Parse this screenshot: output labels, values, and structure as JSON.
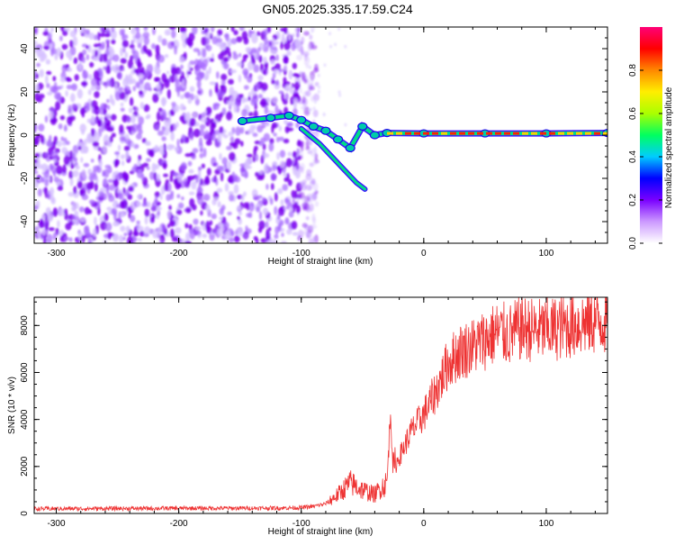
{
  "title": "GN05.2025.335.17.59.C24",
  "chart_data": [
    {
      "type": "heatmap",
      "title": "GN05.2025.335.17.59.C24",
      "xlabel": "Height of straight line (km)",
      "ylabel": "Frequency (Hz)",
      "xlim": [
        -318,
        150
      ],
      "ylim": [
        -50,
        50
      ],
      "xticks": [
        -300,
        -200,
        -100,
        0,
        100
      ],
      "yticks": [
        -40,
        -20,
        0,
        20,
        40
      ],
      "xtick_labels": [
        "-300",
        "-200",
        "-100",
        "0",
        "100"
      ],
      "ytick_labels": [
        "-40",
        "-20",
        "0",
        "20",
        "40"
      ],
      "noise_region_x": [
        -318,
        -93
      ],
      "signal_track": [
        {
          "x": -148,
          "y": 6.5
        },
        {
          "x": -125,
          "y": 8
        },
        {
          "x": -110,
          "y": 9
        },
        {
          "x": -100,
          "y": 7
        },
        {
          "x": -90,
          "y": 4
        },
        {
          "x": -80,
          "y": 2
        },
        {
          "x": -70,
          "y": -2
        },
        {
          "x": -60,
          "y": -6
        },
        {
          "x": -50,
          "y": 4
        },
        {
          "x": -40,
          "y": 0
        },
        {
          "x": -30,
          "y": 1
        },
        {
          "x": 0,
          "y": 0.8
        },
        {
          "x": 50,
          "y": 0.8
        },
        {
          "x": 100,
          "y": 0.8
        },
        {
          "x": 150,
          "y": 1
        }
      ],
      "branch_track": [
        {
          "x": -100,
          "y": 3
        },
        {
          "x": -85,
          "y": -4
        },
        {
          "x": -75,
          "y": -10
        },
        {
          "x": -65,
          "y": -16
        },
        {
          "x": -55,
          "y": -22
        },
        {
          "x": -48,
          "y": -25
        }
      ],
      "colorbar": {
        "label": "Normalized spectral amplitude",
        "range": [
          0,
          1
        ],
        "ticks": [
          0.0,
          0.2,
          0.4,
          0.6,
          0.8
        ],
        "tick_labels": [
          "0.0",
          "0.2",
          "0.4",
          "0.6",
          "0.8"
        ],
        "colors": [
          "#ffffff",
          "#cc99ff",
          "#7a00ff",
          "#0000ff",
          "#00ccff",
          "#00ff60",
          "#aaff00",
          "#ffee00",
          "#ff8800",
          "#ff0000",
          "#ff0077"
        ]
      }
    },
    {
      "type": "line",
      "xlabel": "Height of straight line (km)",
      "ylabel": "SNR (10 * v/v)",
      "xlim": [
        -318,
        150
      ],
      "ylim": [
        0,
        9200
      ],
      "xticks": [
        -300,
        -200,
        -100,
        0,
        100
      ],
      "yticks": [
        0,
        2000,
        4000,
        6000,
        8000
      ],
      "xtick_labels": [
        "-300",
        "-200",
        "-100",
        "0",
        "100"
      ],
      "ytick_labels": [
        "0",
        "2000",
        "4000",
        "6000",
        "8000"
      ],
      "color": "#ee3333",
      "x": [
        -318,
        -200,
        -120,
        -100,
        -90,
        -80,
        -70,
        -60,
        -50,
        -45,
        -40,
        -35,
        -30,
        -27,
        -25,
        -20,
        -10,
        0,
        10,
        20,
        30,
        40,
        50,
        60,
        70,
        80,
        90,
        100,
        110,
        120,
        130,
        140,
        150
      ],
      "values": [
        200,
        220,
        230,
        250,
        300,
        420,
        800,
        1300,
        1000,
        900,
        800,
        1100,
        1300,
        4500,
        1800,
        2400,
        3500,
        4200,
        5200,
        6400,
        6900,
        7100,
        7400,
        7700,
        7600,
        7900,
        7800,
        7800,
        7900,
        8000,
        8100,
        8200,
        8200
      ]
    }
  ]
}
